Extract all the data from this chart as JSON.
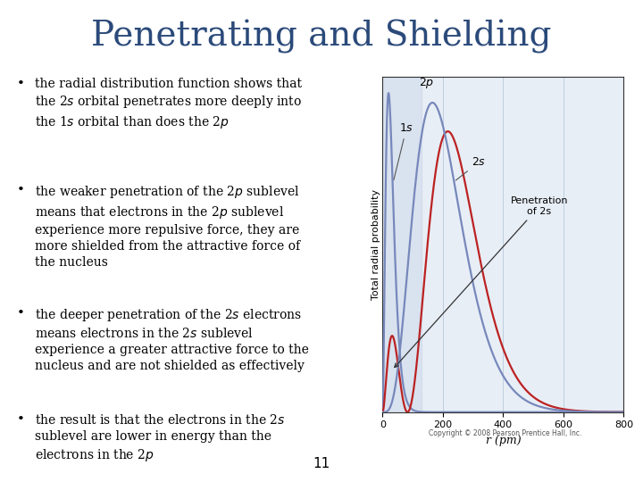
{
  "title": "Penetrating and Shielding",
  "title_color": "#2B4A7A",
  "title_fontsize": 28,
  "background_color": "#FFFFFF",
  "bullet_texts": [
    "the radial distribution function shows that\nthe 2$s$ orbital penetrates more deeply into\nthe 1$s$ orbital than does the 2$p$",
    "the weaker penetration of the 2$p$ sublevel\nmeans that electrons in the 2$p$ sublevel\nexperience more repulsive force, they are\nmore shielded from the attractive force of\nthe nucleus",
    "the deeper penetration of the 2$s$ electrons\nmeans electrons in the 2$s$ sublevel\nexperience a greater attractive force to the\nnucleus and are not shielded as effectively",
    "the result is that the electrons in the 2$s$\nsublevel are lower in energy than the\nelectrons in the 2$p$"
  ],
  "page_number": "11",
  "chart_xlim": [
    0,
    800
  ],
  "chart_xlabel": "r (pm)",
  "chart_ylabel": "Total radial probability",
  "chart_xticks": [
    0,
    200,
    400,
    600,
    800
  ],
  "chart_bg_color": "#E8EEF6",
  "chart_shade_color": "#C8D4E8",
  "chart_grid_color": "#B8C8DC",
  "curve_1s_color": "#7788BB",
  "curve_2s_color": "#BB2222",
  "curve_2p_color": "#7788BB",
  "copyright": "Copyright © 2008 Pearson Prentice Hall, Inc.",
  "annotation_penetration": "Penetration\nof 2s",
  "label_1s": "1$s$",
  "label_2p": "2$p$",
  "label_2s": "2$s$"
}
